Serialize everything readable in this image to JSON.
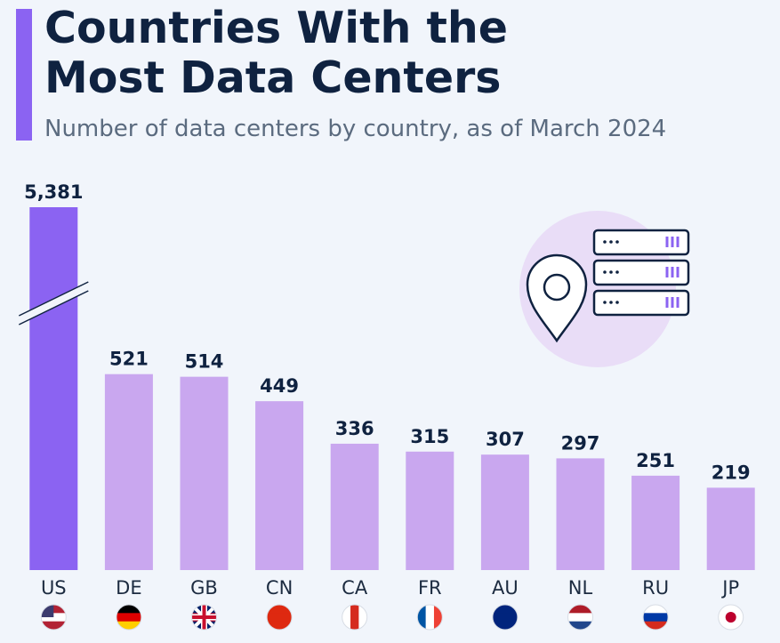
{
  "chart_data": {
    "type": "bar",
    "title": "Countries With the Most Data Centers",
    "subtitle": "Number of data centers by country, as of March 2024",
    "categories": [
      "US",
      "DE",
      "GB",
      "CN",
      "CA",
      "FR",
      "AU",
      "NL",
      "RU",
      "JP"
    ],
    "values": [
      5381,
      521,
      514,
      449,
      336,
      315,
      307,
      297,
      251,
      219
    ],
    "value_labels": [
      "5,381",
      "521",
      "514",
      "449",
      "336",
      "315",
      "307",
      "297",
      "251",
      "219"
    ],
    "colors": [
      "#8b63f2",
      "#c9a7ef",
      "#c9a7ef",
      "#c9a7ef",
      "#c9a7ef",
      "#c9a7ef",
      "#c9a7ef",
      "#c9a7ef",
      "#c9a7ef",
      "#c9a7ef"
    ]
  }
}
